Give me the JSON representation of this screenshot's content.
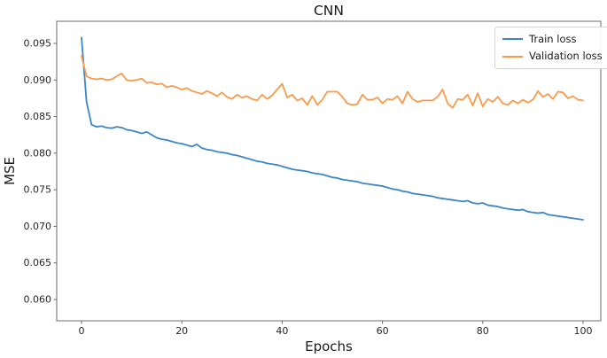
{
  "chart_data": {
    "type": "line",
    "title": "CNN",
    "xlabel": "Epochs",
    "ylabel": "MSE",
    "grid": false,
    "legend_position": "upper right",
    "x_ticks": [
      0,
      20,
      40,
      60,
      80,
      100
    ],
    "y_ticks": [
      0.06,
      0.065,
      0.07,
      0.075,
      0.08,
      0.085,
      0.09,
      0.095
    ],
    "xlim": [
      -5,
      105
    ],
    "ylim": [
      0.0571,
      0.098
    ],
    "x": [
      0,
      1,
      2,
      3,
      4,
      5,
      6,
      7,
      8,
      9,
      10,
      11,
      12,
      13,
      14,
      15,
      16,
      17,
      18,
      19,
      20,
      21,
      22,
      23,
      24,
      25,
      26,
      27,
      28,
      29,
      30,
      31,
      32,
      33,
      34,
      35,
      36,
      37,
      38,
      39,
      40,
      41,
      42,
      43,
      44,
      45,
      46,
      47,
      48,
      49,
      50,
      51,
      52,
      53,
      54,
      55,
      56,
      57,
      58,
      59,
      60,
      61,
      62,
      63,
      64,
      65,
      66,
      67,
      68,
      69,
      70,
      71,
      72,
      73,
      74,
      75,
      76,
      77,
      78,
      79,
      80,
      81,
      82,
      83,
      84,
      85,
      86,
      87,
      88,
      89,
      90,
      91,
      92,
      93,
      94,
      95,
      96,
      97,
      98,
      99,
      100
    ],
    "series": [
      {
        "name": "Train loss",
        "color": "#3b86c5",
        "values": [
          0.0958,
          0.087,
          0.0839,
          0.0836,
          0.0837,
          0.0835,
          0.0834,
          0.0836,
          0.0835,
          0.0832,
          0.0831,
          0.0829,
          0.0827,
          0.0829,
          0.0825,
          0.0821,
          0.0819,
          0.0818,
          0.0816,
          0.0814,
          0.0813,
          0.0811,
          0.0809,
          0.0812,
          0.0807,
          0.0805,
          0.0804,
          0.0802,
          0.0801,
          0.08,
          0.0798,
          0.0797,
          0.0795,
          0.0793,
          0.0791,
          0.0789,
          0.0788,
          0.0786,
          0.0785,
          0.0784,
          0.0782,
          0.078,
          0.0778,
          0.0777,
          0.0776,
          0.0775,
          0.0773,
          0.0772,
          0.0771,
          0.0769,
          0.0767,
          0.0766,
          0.0764,
          0.0763,
          0.0762,
          0.0761,
          0.0759,
          0.0758,
          0.0757,
          0.0756,
          0.0755,
          0.0753,
          0.0751,
          0.075,
          0.0748,
          0.0747,
          0.0745,
          0.0744,
          0.0743,
          0.0742,
          0.0741,
          0.0739,
          0.0738,
          0.0737,
          0.0736,
          0.0735,
          0.0734,
          0.0735,
          0.0732,
          0.0731,
          0.0732,
          0.0729,
          0.0728,
          0.0727,
          0.0725,
          0.0724,
          0.0723,
          0.0722,
          0.0723,
          0.072,
          0.0719,
          0.0718,
          0.0719,
          0.0716,
          0.0715,
          0.0714,
          0.0713,
          0.0712,
          0.0711,
          0.071,
          0.0709
        ]
      },
      {
        "name": "Validation loss",
        "color": "#f99a4b",
        "values": [
          0.0933,
          0.0905,
          0.0902,
          0.0901,
          0.0902,
          0.09,
          0.0901,
          0.0905,
          0.0909,
          0.09,
          0.0899,
          0.09,
          0.0902,
          0.0896,
          0.0897,
          0.0894,
          0.0895,
          0.089,
          0.0892,
          0.089,
          0.0887,
          0.0889,
          0.0885,
          0.0883,
          0.0881,
          0.0885,
          0.0882,
          0.0878,
          0.0883,
          0.0877,
          0.0874,
          0.088,
          0.0876,
          0.0878,
          0.0874,
          0.0872,
          0.088,
          0.0874,
          0.0879,
          0.0887,
          0.0895,
          0.0876,
          0.088,
          0.0872,
          0.0875,
          0.0866,
          0.0878,
          0.0866,
          0.0873,
          0.0884,
          0.0884,
          0.0884,
          0.0877,
          0.0868,
          0.0866,
          0.0867,
          0.088,
          0.0873,
          0.0873,
          0.0876,
          0.0868,
          0.0874,
          0.0873,
          0.0878,
          0.0868,
          0.0884,
          0.0874,
          0.087,
          0.0872,
          0.0872,
          0.0872,
          0.0877,
          0.0887,
          0.0868,
          0.0862,
          0.0874,
          0.0873,
          0.088,
          0.0865,
          0.0882,
          0.0864,
          0.0874,
          0.087,
          0.0877,
          0.0868,
          0.0866,
          0.0872,
          0.0868,
          0.0873,
          0.0869,
          0.0873,
          0.0885,
          0.0877,
          0.0881,
          0.0874,
          0.0884,
          0.0883,
          0.0875,
          0.0878,
          0.0873,
          0.0872
        ]
      }
    ],
    "axis_color": "#6b6b6b",
    "tick_label_color": "#262626"
  }
}
